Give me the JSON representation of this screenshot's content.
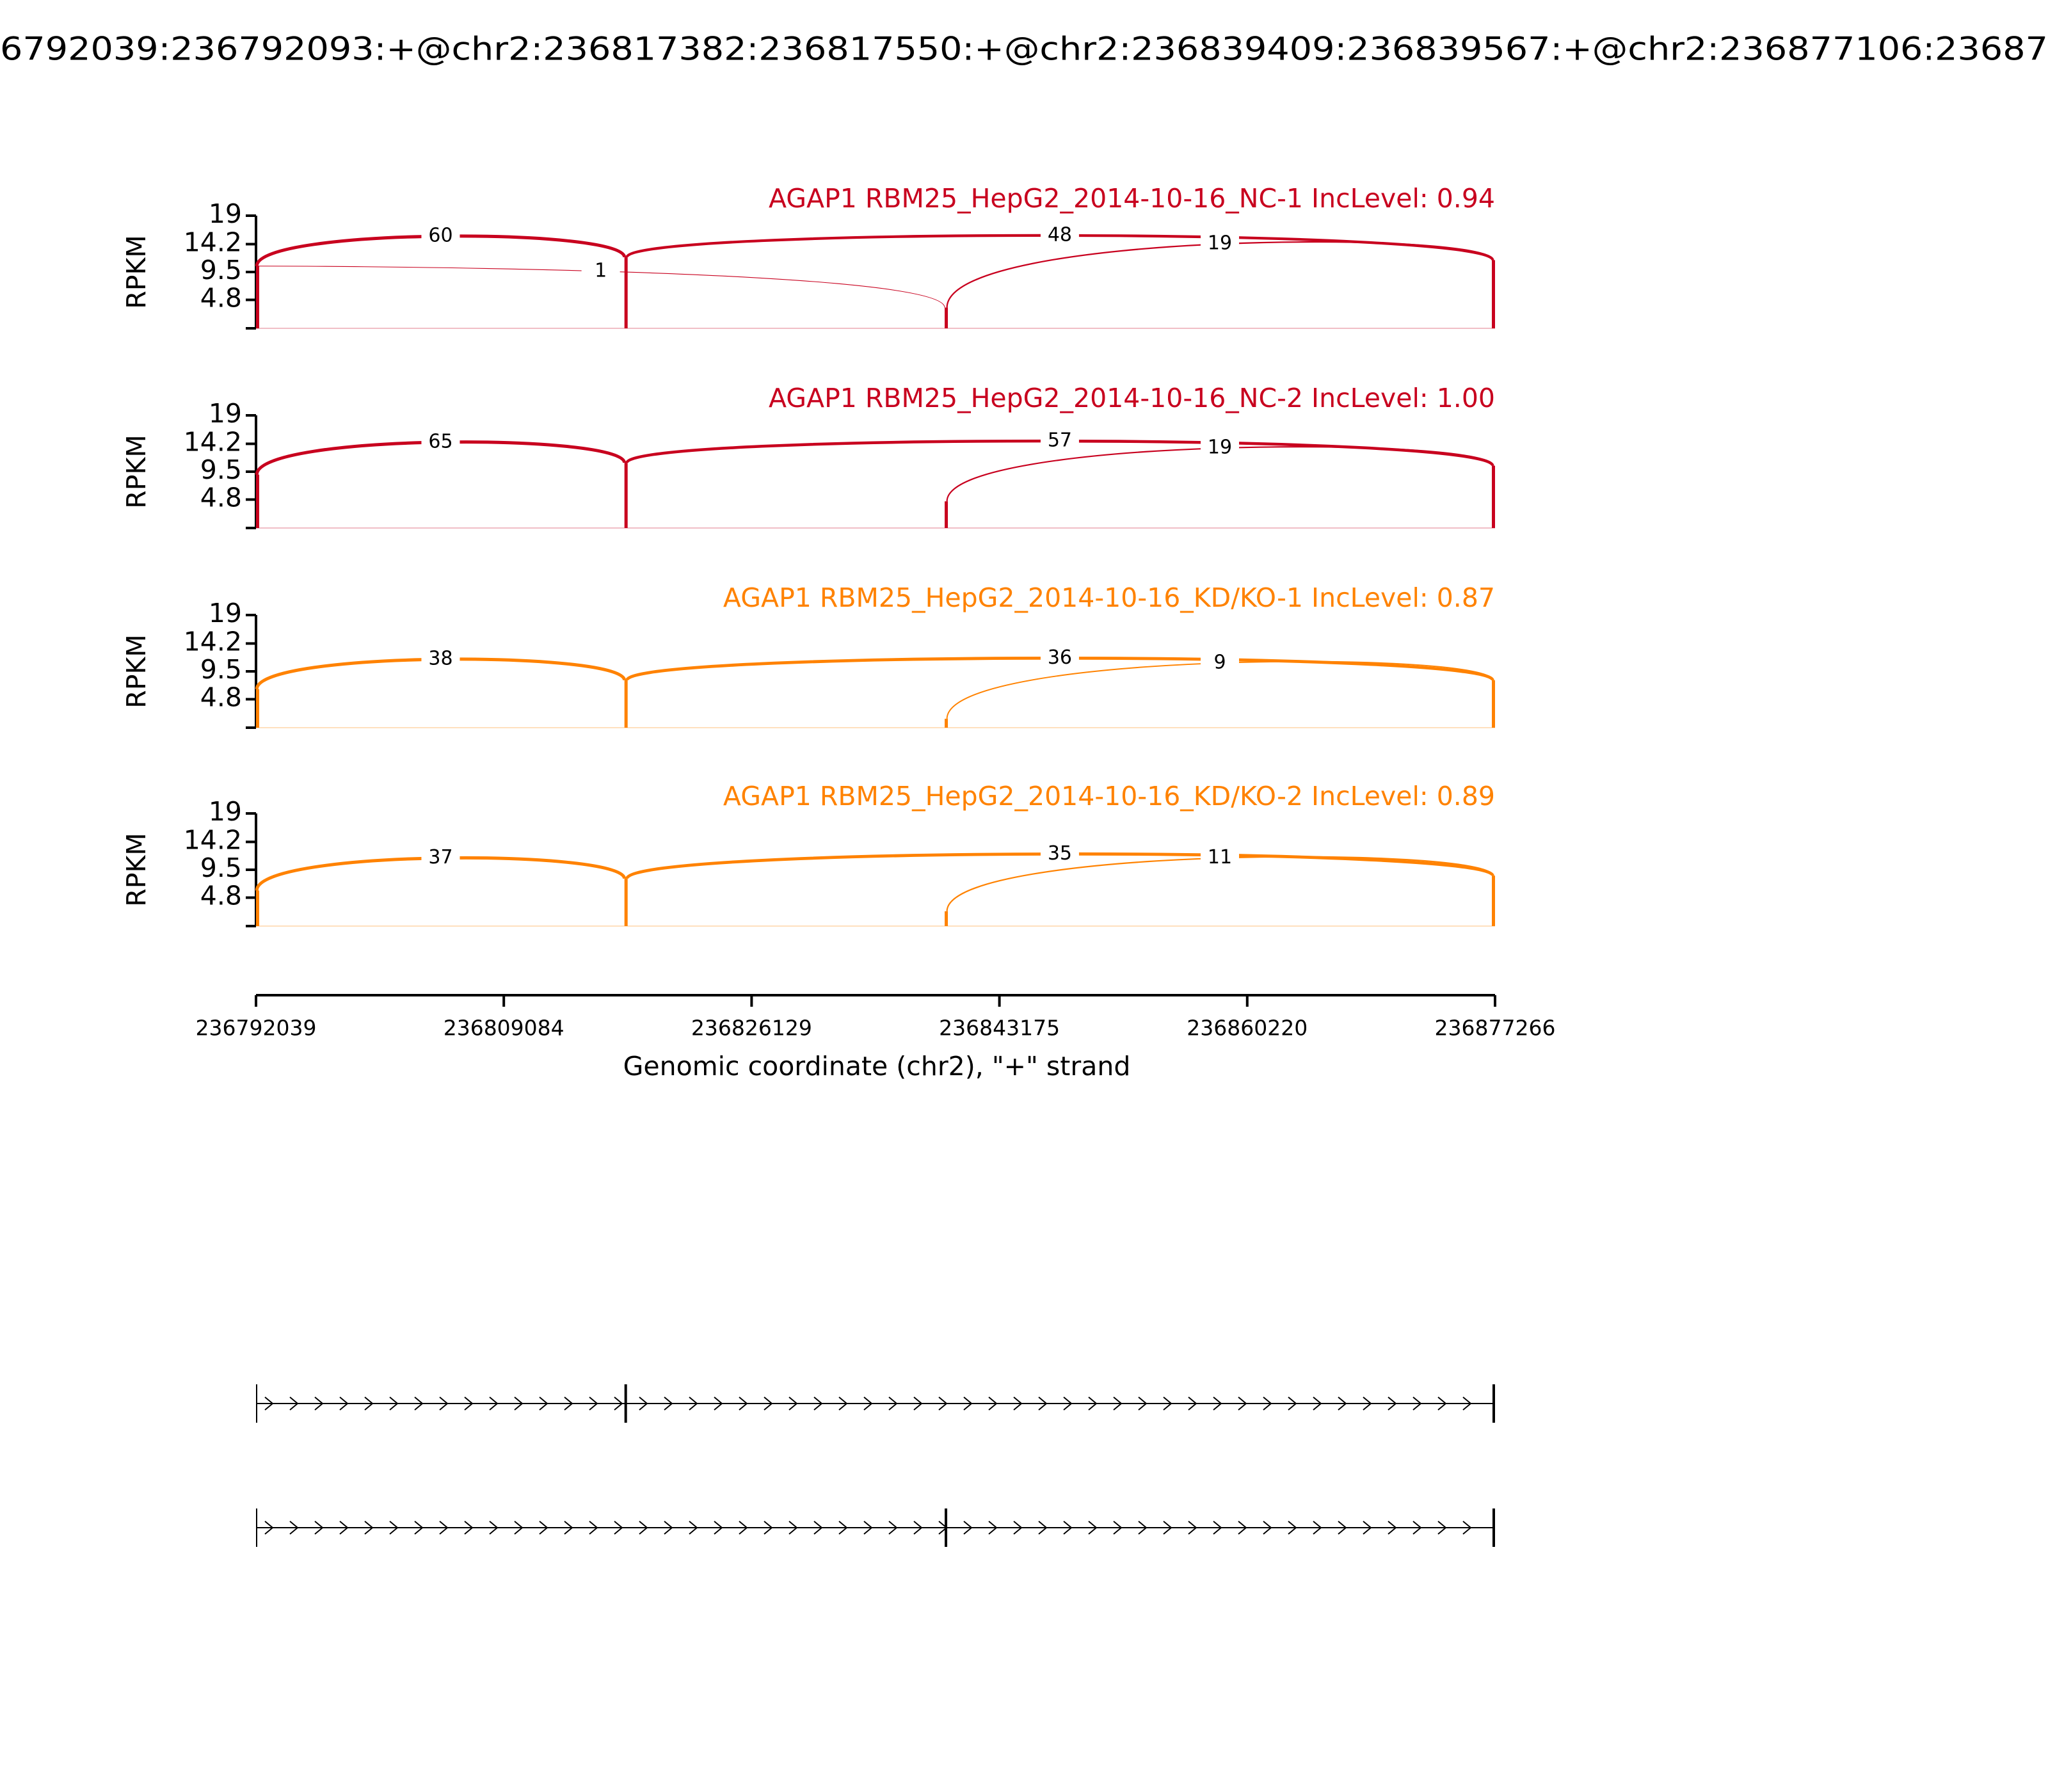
{
  "chart_data": {
    "type": "sashimi",
    "title": "6792039:236792093:+@chr2:236817382:236817550:+@chr2:236839409:236839567:+@chr2:236877106:23687",
    "xlim": [
      236792039,
      236877266
    ],
    "xticks": [
      236792039,
      236809084,
      236826129,
      236843175,
      236860220,
      236877266
    ],
    "xlabel": "Genomic coordinate (chr2), \"+\" strand",
    "exons": [
      [
        236792039,
        236792093
      ],
      [
        236817382,
        236817550
      ],
      [
        236839409,
        236839567
      ],
      [
        236877106,
        236877266
      ]
    ],
    "isoforms": [
      [
        0,
        1,
        3
      ],
      [
        0,
        2,
        3
      ]
    ],
    "panels": [
      {
        "title": "AGAP1 RBM25_HepG2_2014-10-16_NC-1 IncLevel: 0.94",
        "color": "#c8001e",
        "ylabel": "RPKM",
        "ylim": [
          0,
          19
        ],
        "yticks": [
          4.8,
          9.5,
          14.2,
          19
        ],
        "coverage": [
          10.5,
          12,
          3.5,
          11.5
        ],
        "junctions": [
          {
            "from": 0,
            "to": 1,
            "count": 60
          },
          {
            "from": 1,
            "to": 3,
            "count": 48
          },
          {
            "from": 0,
            "to": 2,
            "count": 1
          },
          {
            "from": 2,
            "to": 3,
            "count": 19
          }
        ]
      },
      {
        "title": "AGAP1 RBM25_HepG2_2014-10-16_NC-2 IncLevel: 1.00",
        "color": "#c8001e",
        "ylabel": "RPKM",
        "ylim": [
          0,
          19
        ],
        "yticks": [
          4.8,
          9.5,
          14.2,
          19
        ],
        "coverage": [
          9,
          11,
          4.5,
          10.5
        ],
        "junctions": [
          {
            "from": 0,
            "to": 1,
            "count": 65
          },
          {
            "from": 1,
            "to": 3,
            "count": 57
          },
          {
            "from": 2,
            "to": 3,
            "count": 19
          }
        ]
      },
      {
        "title": "AGAP1 RBM25_HepG2_2014-10-16_KD/KO-1 IncLevel: 0.87",
        "color": "#ff8200",
        "ylabel": "RPKM",
        "ylim": [
          0,
          19
        ],
        "yticks": [
          4.8,
          9.5,
          14.2,
          19
        ],
        "coverage": [
          6.5,
          8,
          1.5,
          8
        ],
        "junctions": [
          {
            "from": 0,
            "to": 1,
            "count": 38
          },
          {
            "from": 1,
            "to": 3,
            "count": 36
          },
          {
            "from": 2,
            "to": 3,
            "count": 9
          }
        ]
      },
      {
        "title": "AGAP1 RBM25_HepG2_2014-10-16_KD/KO-2 IncLevel: 0.89",
        "color": "#ff8200",
        "ylabel": "RPKM",
        "ylim": [
          0,
          19
        ],
        "yticks": [
          4.8,
          9.5,
          14.2,
          19
        ],
        "coverage": [
          6,
          8,
          2.5,
          8.5
        ],
        "junctions": [
          {
            "from": 0,
            "to": 1,
            "count": 37
          },
          {
            "from": 1,
            "to": 3,
            "count": 35
          },
          {
            "from": 2,
            "to": 3,
            "count": 11
          }
        ]
      }
    ]
  }
}
